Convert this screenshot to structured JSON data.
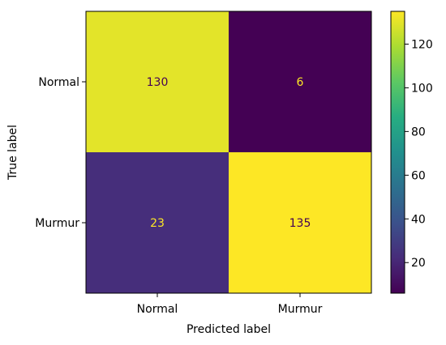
{
  "chart_data": {
    "type": "heatmap",
    "matrix": [
      [
        130,
        6
      ],
      [
        23,
        135
      ]
    ],
    "x_categories": [
      "Normal",
      "Murmur"
    ],
    "y_categories": [
      "Normal",
      "Murmur"
    ],
    "xlabel": "Predicted label",
    "ylabel": "True label",
    "colormap": "viridis",
    "colorbar": {
      "min": 6,
      "max": 135,
      "ticks": [
        20,
        40,
        60,
        80,
        100,
        120
      ]
    },
    "grid": false
  }
}
